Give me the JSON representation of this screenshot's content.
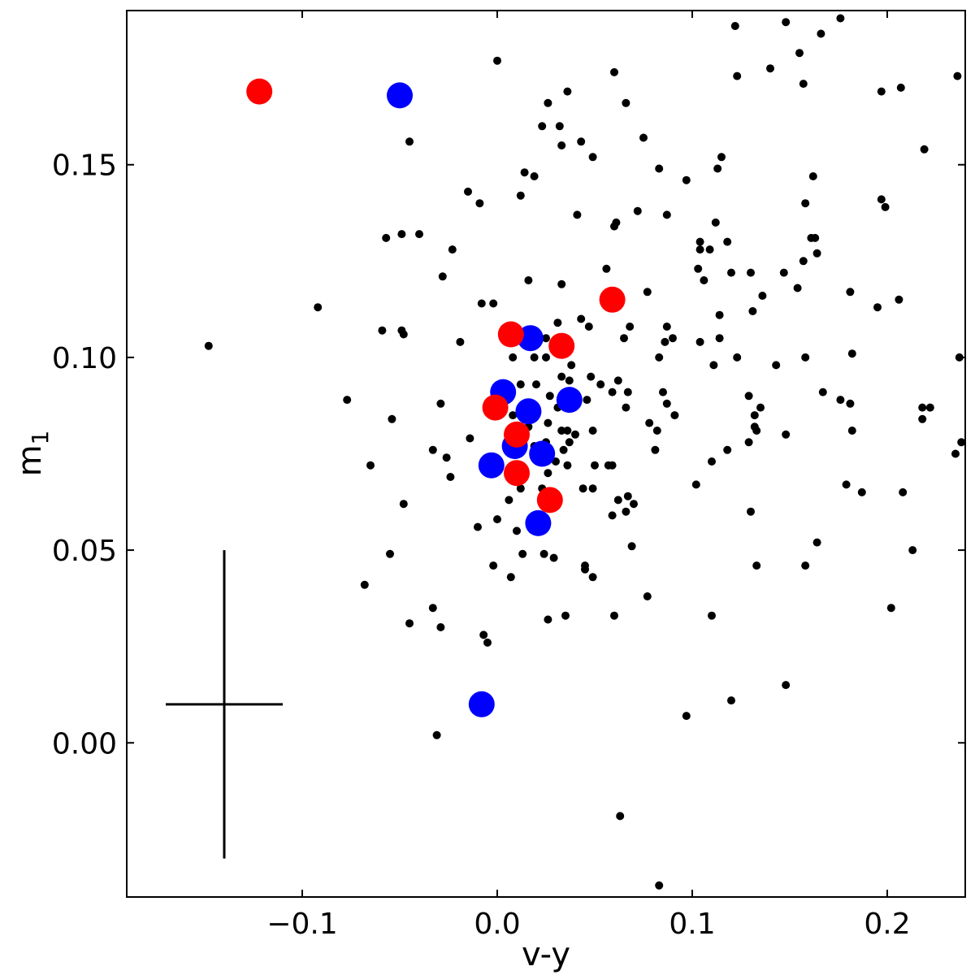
{
  "chart_data": {
    "type": "scatter",
    "xlabel": "v-y",
    "ylabel": "m",
    "ylabel_subscript": "1",
    "xlim": [
      -0.19,
      0.24
    ],
    "ylim": [
      -0.04,
      0.19
    ],
    "xticks": [
      -0.1,
      0.0,
      0.1,
      0.2
    ],
    "xtick_labels": [
      "−0.1",
      "0.0",
      "0.1",
      "0.2"
    ],
    "yticks": [
      0.0,
      0.05,
      0.1,
      0.15
    ],
    "ytick_labels": [
      "0.00",
      "0.05",
      "0.10",
      "0.15"
    ],
    "grid": false,
    "series": [
      {
        "color": "#000000",
        "marker": "small-dot",
        "points": [
          [
            0.0,
            0.177
          ],
          [
            -0.045,
            0.156
          ],
          [
            -0.049,
            0.132
          ],
          [
            -0.057,
            0.131
          ],
          [
            -0.04,
            0.132
          ],
          [
            -0.023,
            0.128
          ],
          [
            -0.028,
            0.121
          ],
          [
            -0.015,
            0.143
          ],
          [
            -0.009,
            0.14
          ],
          [
            -0.092,
            0.113
          ],
          [
            -0.148,
            0.103
          ],
          [
            -0.059,
            0.107
          ],
          [
            -0.049,
            0.107
          ],
          [
            -0.048,
            0.106
          ],
          [
            -0.019,
            0.104
          ],
          [
            -0.008,
            0.114
          ],
          [
            -0.002,
            0.114
          ],
          [
            -0.077,
            0.089
          ],
          [
            -0.029,
            0.088
          ],
          [
            -0.054,
            0.084
          ],
          [
            -0.065,
            0.072
          ],
          [
            -0.033,
            0.076
          ],
          [
            -0.026,
            0.074
          ],
          [
            -0.014,
            0.079
          ],
          [
            -0.024,
            0.069
          ],
          [
            -0.048,
            0.062
          ],
          [
            -0.055,
            0.049
          ],
          [
            -0.068,
            0.041
          ],
          [
            -0.045,
            0.031
          ],
          [
            -0.029,
            0.03
          ],
          [
            -0.033,
            0.035
          ],
          [
            -0.007,
            0.028
          ],
          [
            -0.005,
            0.026
          ],
          [
            -0.031,
            0.002
          ],
          [
            -0.002,
            0.046
          ],
          [
            0.007,
            0.043
          ],
          [
            0.0,
            0.058
          ],
          [
            -0.01,
            0.056
          ],
          [
            0.013,
            0.049
          ],
          [
            0.006,
            0.063
          ],
          [
            0.01,
            0.055
          ],
          [
            0.012,
            0.066
          ],
          [
            0.026,
            0.166
          ],
          [
            0.036,
            0.169
          ],
          [
            0.023,
            0.16
          ],
          [
            0.032,
            0.16
          ],
          [
            0.033,
            0.155
          ],
          [
            0.043,
            0.156
          ],
          [
            0.049,
            0.152
          ],
          [
            0.06,
            0.174
          ],
          [
            0.066,
            0.166
          ],
          [
            0.075,
            0.157
          ],
          [
            0.014,
            0.148
          ],
          [
            0.019,
            0.147
          ],
          [
            0.012,
            0.142
          ],
          [
            0.041,
            0.137
          ],
          [
            0.06,
            0.134
          ],
          [
            0.061,
            0.135
          ],
          [
            0.072,
            0.138
          ],
          [
            0.083,
            0.149
          ],
          [
            0.087,
            0.137
          ],
          [
            0.097,
            0.146
          ],
          [
            0.016,
            0.12
          ],
          [
            0.033,
            0.119
          ],
          [
            0.056,
            0.123
          ],
          [
            0.077,
            0.117
          ],
          [
            0.043,
            0.11
          ],
          [
            0.047,
            0.108
          ],
          [
            0.031,
            0.109
          ],
          [
            0.025,
            0.105
          ],
          [
            0.065,
            0.105
          ],
          [
            0.068,
            0.108
          ],
          [
            0.087,
            0.108
          ],
          [
            0.086,
            0.104
          ],
          [
            0.09,
            0.105
          ],
          [
            0.083,
            0.1
          ],
          [
            0.019,
            0.1
          ],
          [
            0.008,
            0.1
          ],
          [
            0.025,
            0.1
          ],
          [
            0.038,
            0.098
          ],
          [
            0.037,
            0.094
          ],
          [
            0.033,
            0.095
          ],
          [
            0.048,
            0.095
          ],
          [
            0.053,
            0.093
          ],
          [
            0.02,
            0.093
          ],
          [
            0.012,
            0.093
          ],
          [
            0.059,
            0.091
          ],
          [
            0.062,
            0.094
          ],
          [
            0.067,
            0.091
          ],
          [
            0.027,
            0.09
          ],
          [
            0.031,
            0.087
          ],
          [
            0.046,
            0.089
          ],
          [
            0.066,
            0.087
          ],
          [
            0.085,
            0.091
          ],
          [
            0.087,
            0.088
          ],
          [
            0.008,
            0.085
          ],
          [
            0.016,
            0.082
          ],
          [
            0.026,
            0.083
          ],
          [
            0.033,
            0.081
          ],
          [
            0.036,
            0.081
          ],
          [
            0.04,
            0.08
          ],
          [
            0.049,
            0.081
          ],
          [
            0.078,
            0.083
          ],
          [
            0.082,
            0.081
          ],
          [
            0.091,
            0.085
          ],
          [
            0.019,
            0.077
          ],
          [
            0.025,
            0.078
          ],
          [
            0.037,
            0.078
          ],
          [
            0.03,
            0.073
          ],
          [
            0.034,
            0.076
          ],
          [
            0.05,
            0.072
          ],
          [
            0.057,
            0.072
          ],
          [
            0.059,
            0.072
          ],
          [
            0.081,
            0.076
          ],
          [
            0.026,
            0.07
          ],
          [
            0.036,
            0.072
          ],
          [
            0.044,
            0.066
          ],
          [
            0.049,
            0.066
          ],
          [
            0.062,
            0.063
          ],
          [
            0.067,
            0.064
          ],
          [
            0.066,
            0.06
          ],
          [
            0.07,
            0.062
          ],
          [
            0.059,
            0.059
          ],
          [
            0.009,
            0.071
          ],
          [
            0.023,
            0.066
          ],
          [
            0.024,
            0.049
          ],
          [
            0.029,
            0.048
          ],
          [
            0.045,
            0.046
          ],
          [
            0.045,
            0.045
          ],
          [
            0.049,
            0.043
          ],
          [
            0.069,
            0.051
          ],
          [
            0.077,
            0.038
          ],
          [
            0.06,
            0.033
          ],
          [
            0.026,
            0.032
          ],
          [
            0.035,
            0.033
          ],
          [
            0.063,
            -0.019
          ],
          [
            0.083,
            -0.037
          ],
          [
            0.097,
            0.007
          ],
          [
            0.11,
            0.033
          ],
          [
            0.12,
            0.011
          ],
          [
            0.148,
            0.015
          ],
          [
            0.102,
            0.067
          ],
          [
            0.11,
            0.073
          ],
          [
            0.118,
            0.076
          ],
          [
            0.123,
            0.1
          ],
          [
            0.129,
            0.078
          ],
          [
            0.13,
            0.06
          ],
          [
            0.132,
            0.085
          ],
          [
            0.132,
            0.082
          ],
          [
            0.133,
            0.081
          ],
          [
            0.135,
            0.087
          ],
          [
            0.133,
            0.046
          ],
          [
            0.129,
            0.09
          ],
          [
            0.143,
            0.098
          ],
          [
            0.148,
            0.08
          ],
          [
            0.104,
            0.13
          ],
          [
            0.104,
            0.128
          ],
          [
            0.103,
            0.123
          ],
          [
            0.106,
            0.12
          ],
          [
            0.109,
            0.128
          ],
          [
            0.112,
            0.135
          ],
          [
            0.118,
            0.13
          ],
          [
            0.113,
            0.149
          ],
          [
            0.115,
            0.152
          ],
          [
            0.12,
            0.122
          ],
          [
            0.114,
            0.111
          ],
          [
            0.114,
            0.105
          ],
          [
            0.104,
            0.104
          ],
          [
            0.111,
            0.098
          ],
          [
            0.13,
            0.122
          ],
          [
            0.136,
            0.116
          ],
          [
            0.131,
            0.112
          ],
          [
            0.147,
            0.122
          ],
          [
            0.154,
            0.118
          ],
          [
            0.157,
            0.125
          ],
          [
            0.158,
            0.14
          ],
          [
            0.161,
            0.131
          ],
          [
            0.163,
            0.131
          ],
          [
            0.162,
            0.147
          ],
          [
            0.164,
            0.127
          ],
          [
            0.158,
            0.1
          ],
          [
            0.167,
            0.091
          ],
          [
            0.176,
            0.089
          ],
          [
            0.181,
            0.088
          ],
          [
            0.182,
            0.081
          ],
          [
            0.182,
            0.101
          ],
          [
            0.181,
            0.117
          ],
          [
            0.179,
            0.067
          ],
          [
            0.187,
            0.065
          ],
          [
            0.158,
            0.046
          ],
          [
            0.164,
            0.052
          ],
          [
            0.202,
            0.035
          ],
          [
            0.208,
            0.065
          ],
          [
            0.213,
            0.05
          ],
          [
            0.218,
            0.084
          ],
          [
            0.218,
            0.087
          ],
          [
            0.222,
            0.087
          ],
          [
            0.195,
            0.113
          ],
          [
            0.206,
            0.115
          ],
          [
            0.197,
            0.141
          ],
          [
            0.199,
            0.139
          ],
          [
            0.219,
            0.154
          ],
          [
            0.197,
            0.169
          ],
          [
            0.207,
            0.17
          ],
          [
            0.236,
            0.173
          ],
          [
            0.237,
            0.1
          ],
          [
            0.238,
            0.078
          ],
          [
            0.235,
            0.075
          ],
          [
            0.122,
            0.186
          ],
          [
            0.148,
            0.187
          ],
          [
            0.166,
            0.184
          ],
          [
            0.176,
            0.188
          ],
          [
            0.155,
            0.179
          ],
          [
            0.14,
            0.175
          ],
          [
            0.123,
            0.173
          ],
          [
            0.157,
            0.171
          ]
        ]
      },
      {
        "color": "#0000ff",
        "marker": "large-dot",
        "points": [
          [
            -0.05,
            0.168
          ],
          [
            0.017,
            0.105
          ],
          [
            0.003,
            0.091
          ],
          [
            0.016,
            0.086
          ],
          [
            0.037,
            0.089
          ],
          [
            0.009,
            0.077
          ],
          [
            0.023,
            0.075
          ],
          [
            -0.003,
            0.072
          ],
          [
            0.021,
            0.057
          ],
          [
            -0.008,
            0.01
          ]
        ]
      },
      {
        "color": "#ff0000",
        "marker": "large-dot",
        "points": [
          [
            -0.122,
            0.169
          ],
          [
            0.059,
            0.115
          ],
          [
            0.007,
            0.106
          ],
          [
            0.033,
            0.103
          ],
          [
            -0.001,
            0.087
          ],
          [
            0.01,
            0.08
          ],
          [
            0.01,
            0.07
          ],
          [
            0.027,
            0.063
          ]
        ]
      }
    ],
    "error_bar": {
      "center": [
        -0.14,
        0.01
      ],
      "x_halfwidth": 0.03,
      "y_halfwidth": 0.04
    }
  }
}
